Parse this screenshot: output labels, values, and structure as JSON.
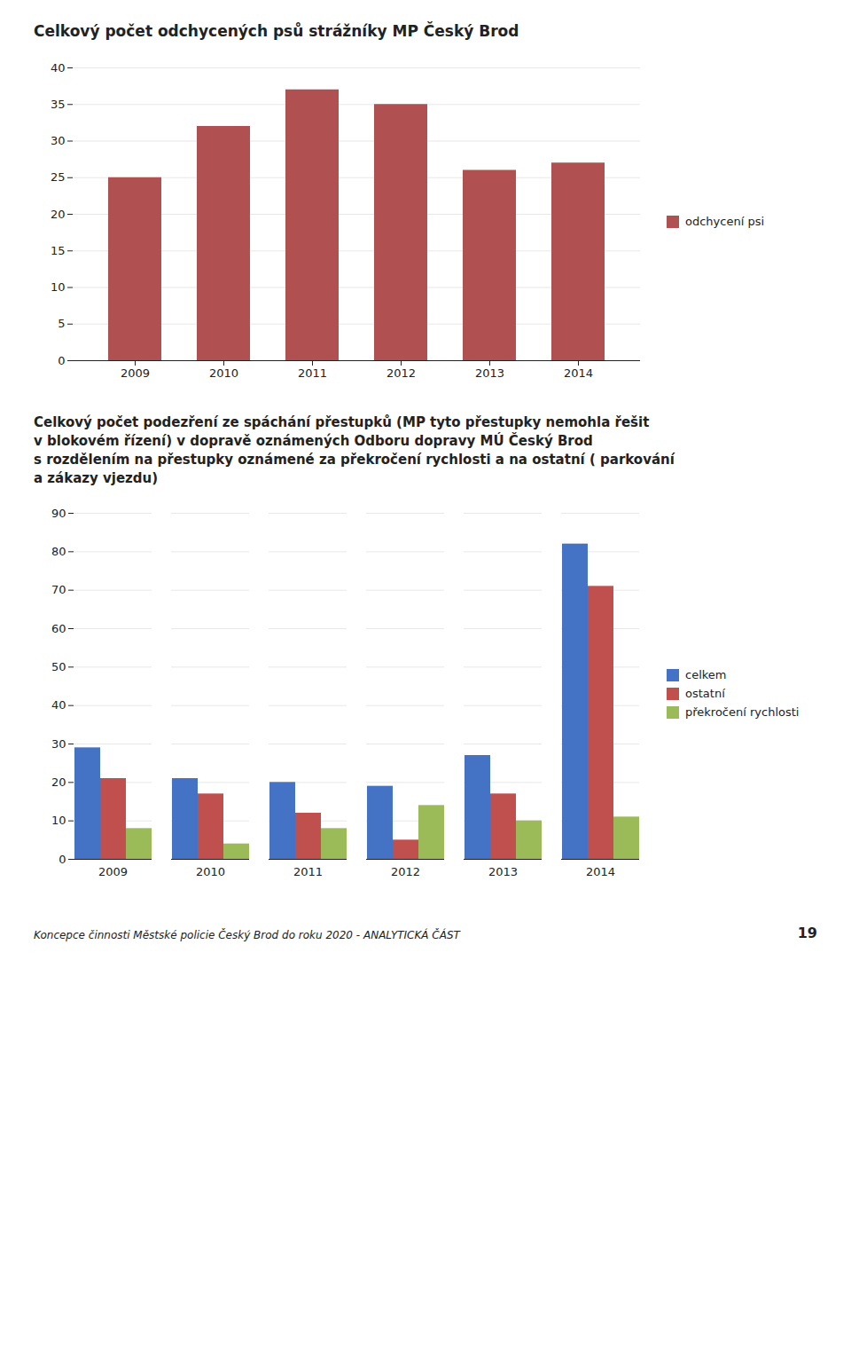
{
  "chart_data": [
    {
      "type": "bar",
      "title": "Celkový počet odchycených psů strážníky MP Český Brod",
      "categories": [
        "2009",
        "2010",
        "2011",
        "2012",
        "2013",
        "2014"
      ],
      "series": [
        {
          "name": "odchycení psi",
          "color": "#b05050",
          "values": [
            25,
            32,
            37,
            35,
            26,
            27
          ]
        }
      ],
      "ylim": [
        0,
        40
      ],
      "yticks": [
        0,
        5,
        10,
        15,
        20,
        25,
        30,
        35,
        40
      ],
      "grid": true,
      "legend": "right"
    },
    {
      "type": "bar",
      "title": "Celkový počet podezření ze spáchání přestupků (MP tyto přestupky nemohla řešit\nv blokovém řízení) v dopravě oznámených Odboru dopravy MÚ Český Brod\ns rozdělením na přestupky oznámené za překročení rychlosti a na ostatní ( parkování\na zákazy vjezdu)",
      "categories": [
        "2009",
        "2010",
        "2011",
        "2012",
        "2013",
        "2014"
      ],
      "series": [
        {
          "name": "celkem",
          "color": "#4472c4",
          "values": [
            29,
            21,
            20,
            19,
            27,
            82
          ]
        },
        {
          "name": "ostatní",
          "color": "#c0504d",
          "values": [
            21,
            17,
            12,
            5,
            17,
            71
          ]
        },
        {
          "name": "překročení rychlosti",
          "color": "#9bbb59",
          "values": [
            8,
            4,
            8,
            14,
            10,
            11
          ]
        }
      ],
      "ylim": [
        0,
        90
      ],
      "yticks": [
        0,
        10,
        20,
        30,
        40,
        50,
        60,
        70,
        80,
        90
      ],
      "grid": true,
      "legend": "right",
      "annotations": [
        "Koncepce činnosti Městské policie Český Brod do roku 2020 - ANALYTICKÁ ČÁST",
        "19"
      ]
    }
  ]
}
